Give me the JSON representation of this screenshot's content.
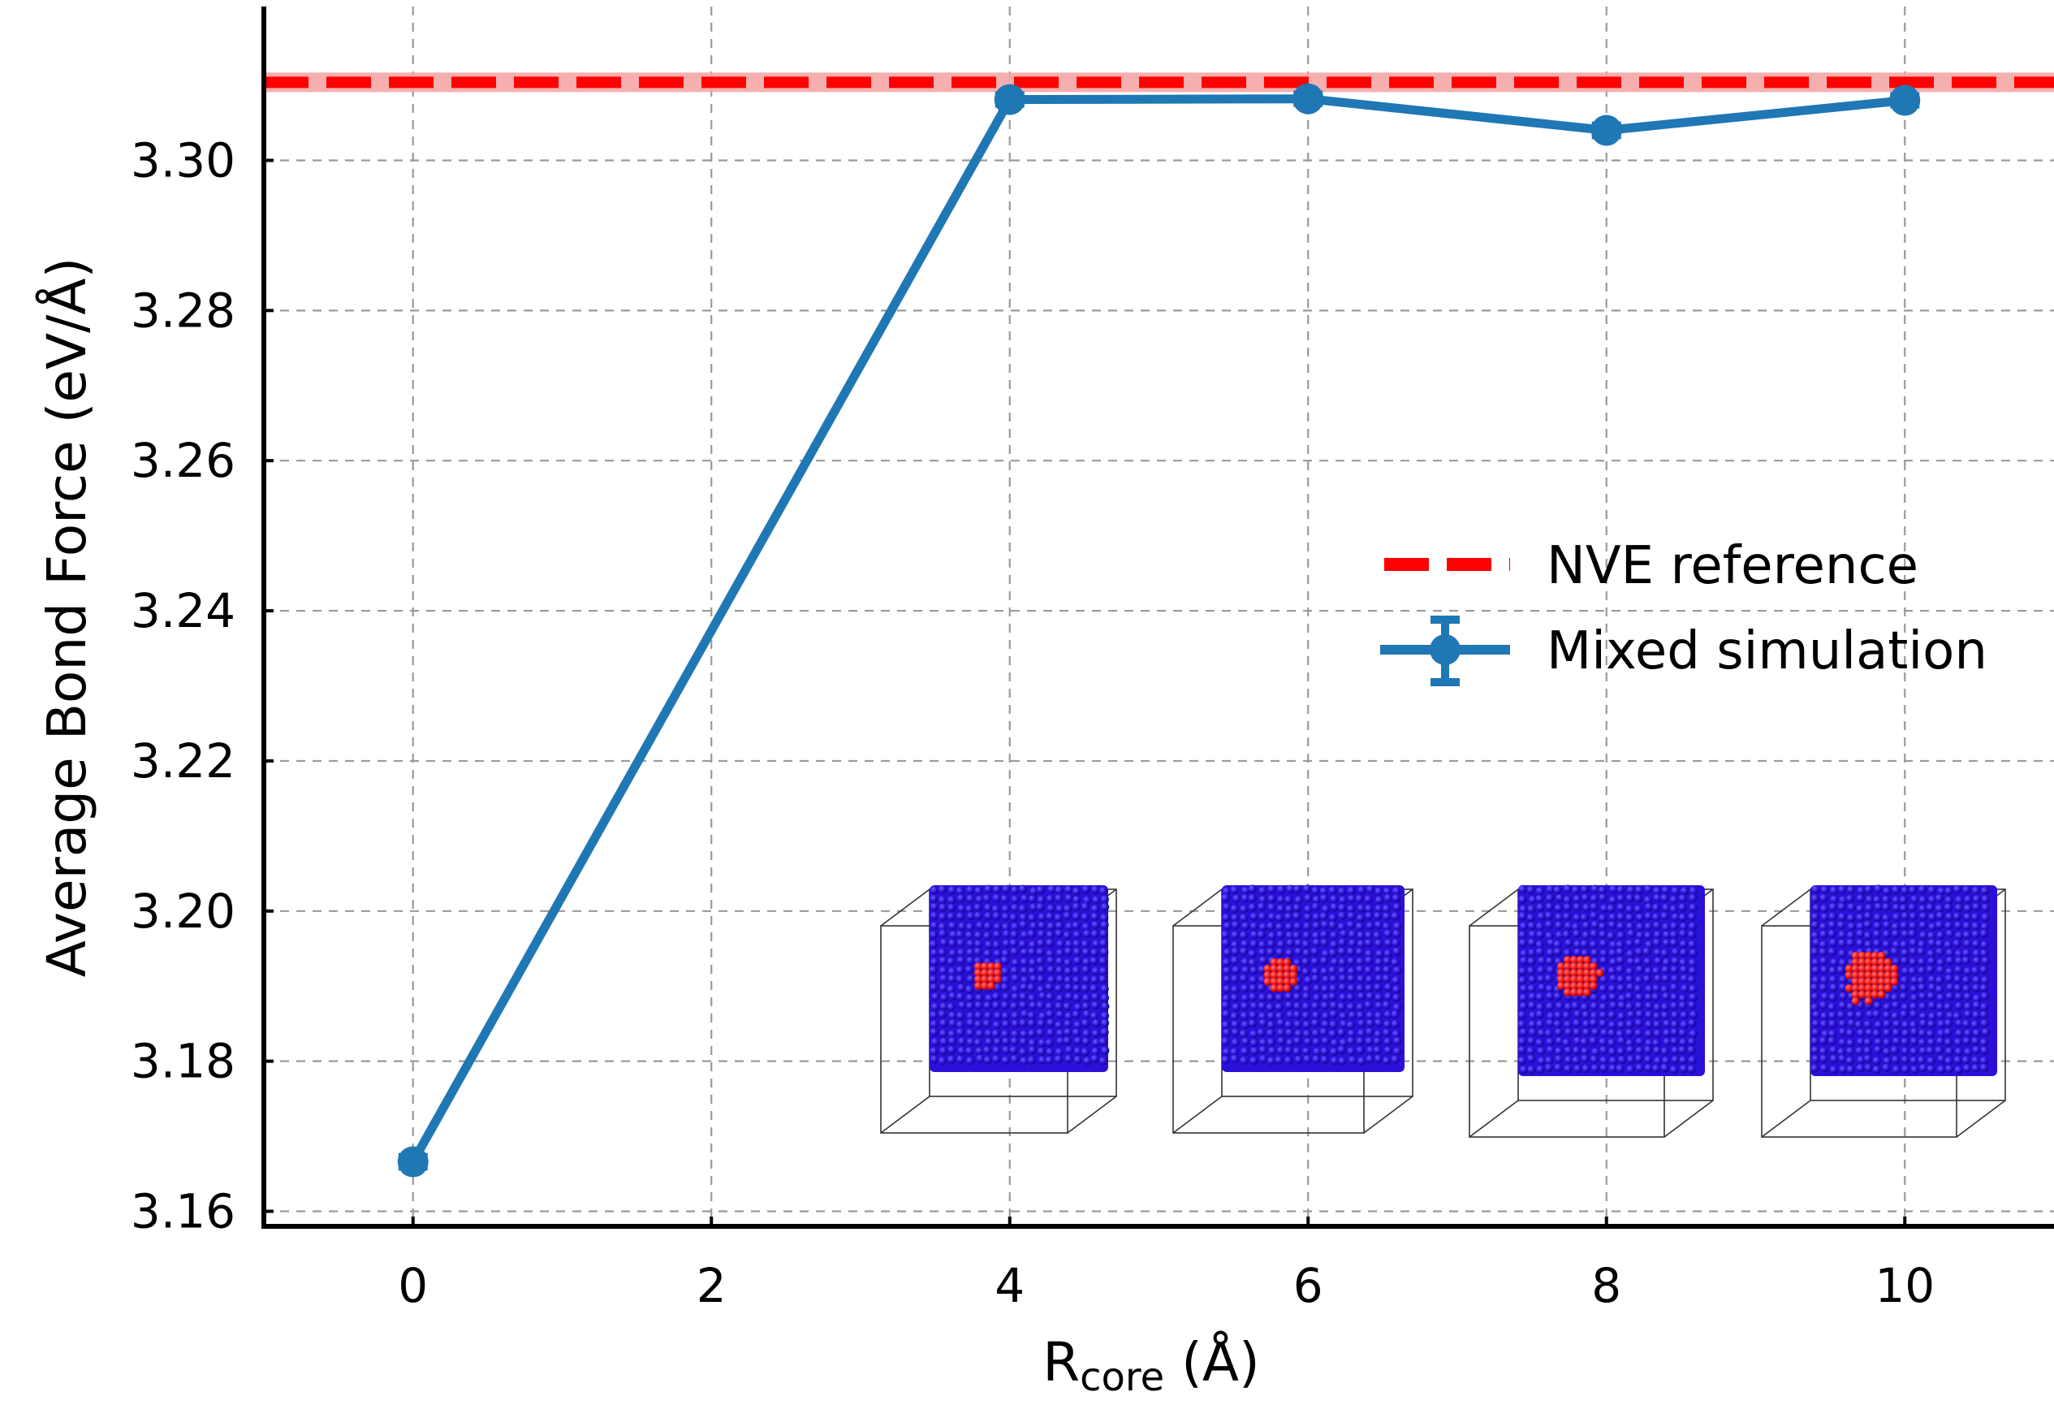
{
  "chart_data": {
    "type": "line",
    "title": "",
    "xlabel": {
      "main": "R",
      "subscript": "core",
      "unit": " (Å)"
    },
    "ylabel": "Average Bond Force (eV/Å)",
    "xlim": [
      -1,
      11
    ],
    "ylim": [
      3.158,
      3.3205
    ],
    "xticks": [
      0,
      2,
      4,
      6,
      8,
      10
    ],
    "xtick_labels": [
      "0",
      "2",
      "4",
      "6",
      "8",
      "10"
    ],
    "yticks": [
      3.16,
      3.18,
      3.2,
      3.22,
      3.24,
      3.26,
      3.28,
      3.3
    ],
    "ytick_labels": [
      "3.16",
      "3.18",
      "3.20",
      "3.22",
      "3.24",
      "3.26",
      "3.28",
      "3.30"
    ],
    "grid": true,
    "legend_position": "right",
    "reference": {
      "name": "NVE reference",
      "value": 3.3104,
      "band": [
        3.3091,
        3.3117
      ],
      "color": "#ff0000",
      "band_color": "#f4a6a6"
    },
    "series": [
      {
        "name": "Mixed simulation",
        "color": "#1f77b4",
        "x": [
          0,
          4,
          6,
          8,
          10
        ],
        "y": [
          3.1666,
          3.3081,
          3.3082,
          3.304,
          3.308
        ],
        "yerr": [
          0.0008,
          0.0007,
          0.0007,
          0.0008,
          0.0007
        ]
      }
    ],
    "insets": [
      {
        "r_core": 4,
        "core_color": "#ee1111",
        "bulk_color": "#2a10d8"
      },
      {
        "r_core": 6,
        "core_color": "#ee1111",
        "bulk_color": "#2a10d8"
      },
      {
        "r_core": 8,
        "core_color": "#ee1111",
        "bulk_color": "#2a10d8"
      },
      {
        "r_core": 10,
        "core_color": "#ee1111",
        "bulk_color": "#2a10d8"
      }
    ]
  }
}
